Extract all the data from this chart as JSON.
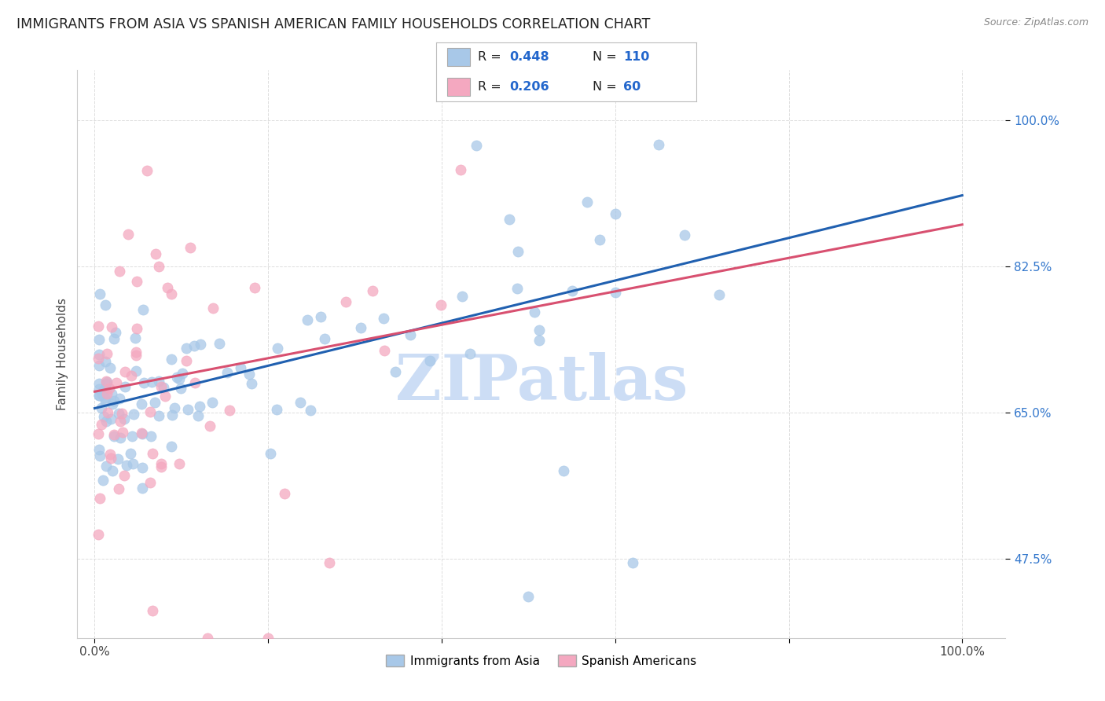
{
  "title": "IMMIGRANTS FROM ASIA VS SPANISH AMERICAN FAMILY HOUSEHOLDS CORRELATION CHART",
  "source": "Source: ZipAtlas.com",
  "ylabel": "Family Households",
  "ytick_labels": [
    "47.5%",
    "65.0%",
    "82.5%",
    "100.0%"
  ],
  "ytick_values": [
    0.475,
    0.65,
    0.825,
    1.0
  ],
  "xtick_labels": [
    "0.0%",
    "100.0%"
  ],
  "xtick_positions": [
    0.0,
    1.0
  ],
  "xlim": [
    -0.02,
    1.05
  ],
  "ylim": [
    0.38,
    1.06
  ],
  "blue_color": "#a8c8e8",
  "pink_color": "#f4a8c0",
  "trend_blue": "#2060b0",
  "trend_pink": "#d85070",
  "watermark": "ZIPatlas",
  "watermark_color": "#ccddf5",
  "legend_r1": "R = 0.448",
  "legend_n1": "N = 110",
  "legend_r2": "R = 0.206",
  "legend_n2": "N = 60",
  "legend_value_color": "#2266cc",
  "background_color": "#ffffff",
  "grid_color": "#dddddd",
  "title_color": "#222222",
  "ylabel_color": "#444444",
  "ytick_color": "#3377cc",
  "xtick_color": "#444444",
  "blue_trend_start_y": 0.655,
  "blue_trend_end_y": 0.91,
  "pink_trend_start_y": 0.675,
  "pink_trend_end_y": 0.875
}
